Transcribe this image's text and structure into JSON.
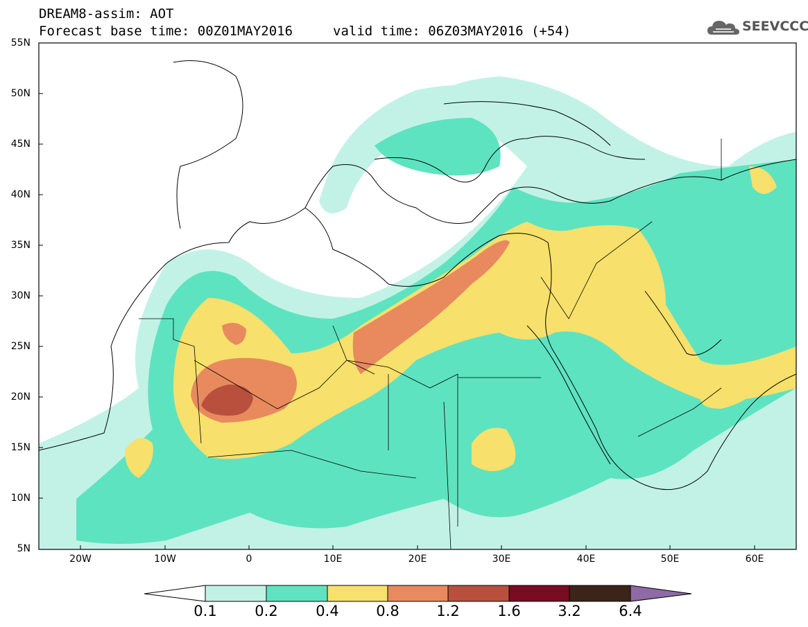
{
  "header": {
    "title_line1": "DREAM8-assim: AOT",
    "base_time": "Forecast base time: 00Z01MAY2016",
    "valid_time": "valid time: 06Z03MAY2016 (+54)",
    "logo_text": "SEEVCCC"
  },
  "axes": {
    "lat_labels": [
      "55N",
      "50N",
      "45N",
      "40N",
      "35N",
      "30N",
      "25N",
      "20N",
      "15N",
      "10N",
      "5N"
    ],
    "lon_labels": [
      "20W",
      "10W",
      "0",
      "10E",
      "20E",
      "30E",
      "40E",
      "50E",
      "60E"
    ],
    "lat_range": [
      5,
      55
    ],
    "lon_range": [
      -25,
      65
    ]
  },
  "colorbar": {
    "labels": [
      "0.1",
      "0.2",
      "0.4",
      "0.8",
      "1.2",
      "1.6",
      "3.2",
      "6.4"
    ],
    "colors": [
      "#ffffff",
      "#c2f2e6",
      "#5ee3c0",
      "#f7e06b",
      "#e88a5e",
      "#b8503d",
      "#7a0c22",
      "#3c2418",
      "#8e6aa6"
    ]
  },
  "palette": {
    "c01": "#c2f2e6",
    "c02": "#5ee3c0",
    "c04": "#f7e06b",
    "c08": "#e88a5e",
    "c12": "#b8503d"
  }
}
